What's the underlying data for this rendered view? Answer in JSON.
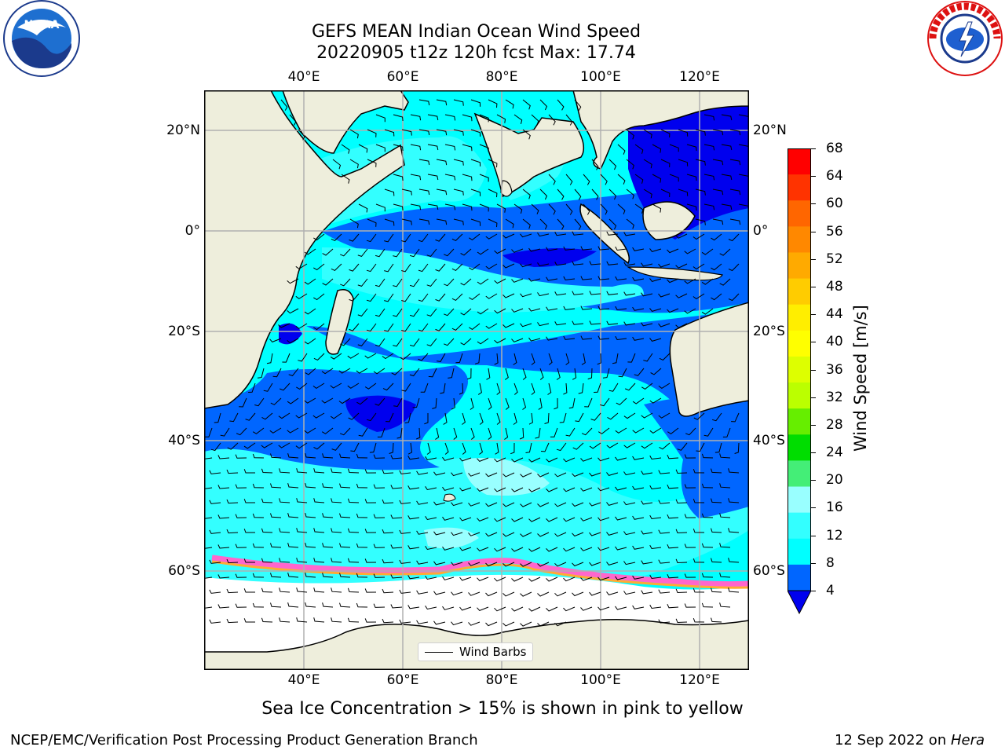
{
  "title": {
    "line1": "GEFS MEAN Indian Ocean Wind Speed",
    "line2": "20220905 t12z 120h fcst   Max: 17.74"
  },
  "logos": {
    "noara": "NOAA",
    "nws": "NATIONAL WEATHER SERVICE"
  },
  "map": {
    "lon_ticks": [
      "40°E",
      "60°E",
      "80°E",
      "100°E",
      "120°E"
    ],
    "lat_ticks_left": [
      "20°N",
      "0°",
      "20°S",
      "40°S",
      "60°S"
    ],
    "lat_ticks_right": [
      "20°N",
      "0°",
      "20°S",
      "40°S",
      "60°S"
    ],
    "legend_label": "Wind Barbs",
    "colors": {
      "land": "#eeeedc",
      "speed_4_8": "#0066ff",
      "speed_8_12": "#00ffff",
      "speed_12_16": "#33ffff",
      "speed_16_20": "#99ffff",
      "calm": "#0000ee",
      "sea_ice": "#ff66cc"
    }
  },
  "colorbar": {
    "label": "Wind Speed [m/s]",
    "ticks": [
      "68",
      "64",
      "60",
      "56",
      "52",
      "48",
      "44",
      "40",
      "36",
      "32",
      "28",
      "24",
      "20",
      "16",
      "12",
      "8",
      "4"
    ],
    "colors": [
      "#ff0000",
      "#ff3300",
      "#ff6600",
      "#ff8800",
      "#ffaa00",
      "#ffcc00",
      "#ffee00",
      "#ffff00",
      "#ddff00",
      "#bbff00",
      "#66ee00",
      "#00dd00",
      "#44ee77",
      "#99ffff",
      "#33ffff",
      "#00ffff",
      "#0066ff"
    ],
    "extend_color": "#0000ee"
  },
  "caption": "Sea Ice Concentration > 15% is shown in pink to yellow",
  "footer": {
    "left": "NCEP/EMC/Verification Post Processing Product Generation Branch",
    "right_date": "12 Sep 2022 on ",
    "right_host": "Hera"
  }
}
